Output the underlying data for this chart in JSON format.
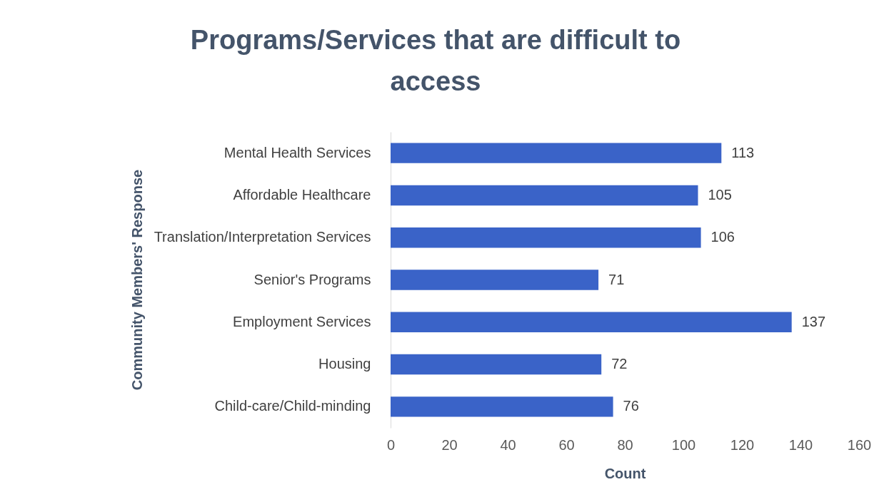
{
  "chart_data": {
    "type": "bar",
    "orientation": "horizontal",
    "title": "Programs/Services that are difficult to access",
    "xlabel": "Count",
    "ylabel": "Community Members' Response",
    "categories": [
      "Mental Health Services",
      "Affordable Healthcare",
      "Translation/Interpretation Services",
      "Senior's Programs",
      "Employment Services",
      "Housing",
      "Child-care/Child-minding"
    ],
    "values": [
      113,
      105,
      106,
      71,
      137,
      72,
      76
    ],
    "color": "#3a63c8",
    "xlim": [
      0,
      160
    ],
    "xticks": [
      0,
      20,
      40,
      60,
      80,
      100,
      120,
      140,
      160
    ],
    "grid": false,
    "data_labels": true
  }
}
